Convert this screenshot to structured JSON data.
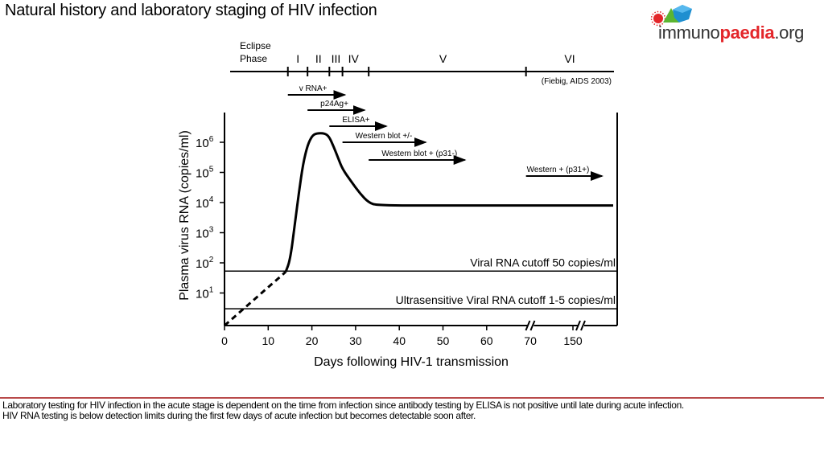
{
  "slide": {
    "title": "Natural history and laboratory staging of HIV infection",
    "logo": {
      "text_plain": "immuno",
      "text_bold": "paedia",
      "text_suffix": ".org",
      "colors": {
        "red": "#e3262a",
        "green": "#5cb531",
        "blue": "#1f8fd0"
      }
    },
    "caption_lines": [
      "Laboratory testing for HIV infection in the acute stage is dependent on the time from infection since antibody testing by ELISA is not positive until late during acute infection.",
      "HIV RNA testing is below detection limits during the first few days of acute infection but becomes detectable soon after."
    ],
    "rule_color": "#b94a4a"
  },
  "chart_data": {
    "type": "line",
    "title": "",
    "xlabel": "Days following HIV-1 transmission",
    "ylabel": "Plasma virus RNA (copies/ml)",
    "yscale": "log",
    "ylim": [
      1,
      2000000
    ],
    "x_ticks": [
      "0",
      "10",
      "20",
      "30",
      "40",
      "50",
      "60",
      "70",
      "150"
    ],
    "x_tick_values": [
      0,
      10,
      20,
      30,
      40,
      50,
      60,
      70,
      150
    ],
    "x_axis_breaks": [
      75,
      155
    ],
    "y_ticks": [
      {
        "value": 1000000,
        "base": "10",
        "exp": "6"
      },
      {
        "value": 100000,
        "base": "10",
        "exp": "5"
      },
      {
        "value": 10000,
        "base": "10",
        "exp": "4"
      },
      {
        "value": 1000,
        "base": "10",
        "exp": "3"
      },
      {
        "value": 100,
        "base": "10",
        "exp": "2"
      },
      {
        "value": 10,
        "base": "10",
        "exp": "1"
      }
    ],
    "series": [
      {
        "style": "dashed",
        "points": [
          [
            0,
            1
          ],
          [
            14,
            50
          ]
        ]
      },
      {
        "style": "solid",
        "points": [
          [
            14,
            50
          ],
          [
            15,
            120
          ],
          [
            16,
            1500
          ],
          [
            17,
            20000
          ],
          [
            18,
            200000
          ],
          [
            19,
            800000
          ],
          [
            20,
            1600000
          ],
          [
            21,
            2000000
          ],
          [
            23,
            2000000
          ],
          [
            24,
            1500000
          ],
          [
            25,
            700000
          ],
          [
            26,
            300000
          ],
          [
            27,
            130000
          ],
          [
            29,
            50000
          ],
          [
            31,
            20000
          ],
          [
            33,
            10000
          ],
          [
            35,
            8000
          ],
          [
            50,
            8000
          ],
          [
            70,
            8000
          ],
          [
            150,
            8000
          ],
          [
            175,
            8000
          ]
        ]
      }
    ],
    "cutoff_lines": [
      {
        "value": 50,
        "label": "Viral RNA cutoff 50 copies/ml"
      },
      {
        "value": 3,
        "label": "Ultrasensitive Viral RNA cutoff 1-5 copies/ml"
      }
    ],
    "stages": {
      "eclipse_label": [
        "Eclipse",
        "Phase"
      ],
      "boundaries": [
        14.5,
        19,
        24,
        27,
        33,
        69
      ],
      "labels": [
        {
          "label": "I",
          "center": 16.8
        },
        {
          "label": "II",
          "center": 21.5
        },
        {
          "label": "III",
          "center": 25.5
        },
        {
          "label": "IV",
          "center": 29.5
        },
        {
          "label": "V",
          "center": 50
        },
        {
          "label": "VI",
          "center": 150
        }
      ],
      "citation": "(Fiebig, AIDS 2003)"
    },
    "test_arrows": [
      {
        "label": "v RNA+",
        "start": 14.5,
        "end": 27.5
      },
      {
        "label": "p24Ag+",
        "start": 19,
        "end": 32
      },
      {
        "label": "ELISA+",
        "start": 24,
        "end": 37
      },
      {
        "label": "Western blot +/-",
        "start": 27,
        "end": 46
      },
      {
        "label": "Western blot + (p31-)",
        "start": 33,
        "end": 55
      },
      {
        "label": "Western + (p31+)",
        "start": 69,
        "end": 168
      }
    ],
    "grid": false
  }
}
